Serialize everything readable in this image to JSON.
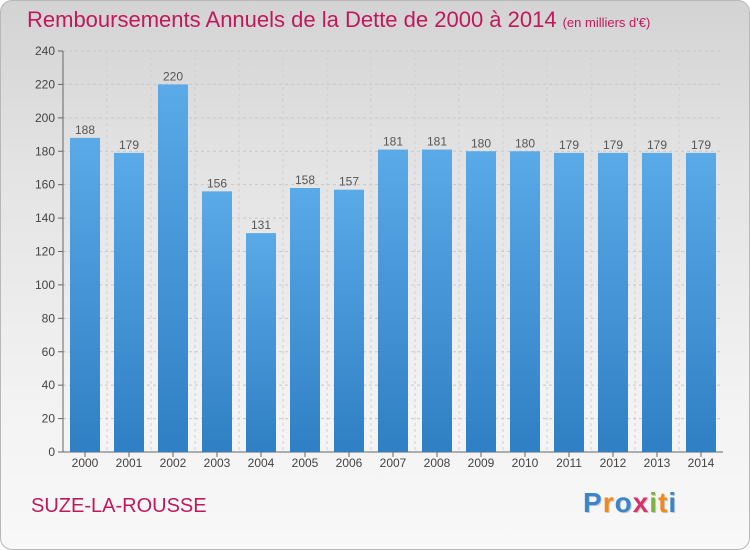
{
  "title": "Remboursements Annuels de la Dette de 2000 à 2014",
  "subtitle": "(en milliers d'€)",
  "commune": "SUZE-LA-ROUSSE",
  "logo": {
    "letters": [
      "P",
      "r",
      "o",
      "x",
      "i",
      "t",
      "i"
    ],
    "colors": [
      "#3a86c8",
      "#f08a1c",
      "#3a86c8",
      "#d6336c",
      "#7cb342",
      "#f08a1c",
      "#3a86c8"
    ]
  },
  "colors": {
    "bar": "#4f9fe0",
    "bar_dark": "#3483c8",
    "title": "#c2185b"
  },
  "chart_data": {
    "type": "bar",
    "categories": [
      "2000",
      "2001",
      "2002",
      "2003",
      "2004",
      "2005",
      "2006",
      "2007",
      "2008",
      "2009",
      "2010",
      "2011",
      "2012",
      "2013",
      "2014"
    ],
    "values": [
      188,
      179,
      220,
      156,
      131,
      158,
      157,
      181,
      181,
      180,
      180,
      179,
      179,
      179,
      179
    ],
    "title": "Remboursements Annuels de la Dette de 2000 à 2014",
    "subtitle": "(en milliers d'€)",
    "ylim": [
      0,
      240
    ],
    "yticks": [
      0,
      20,
      40,
      60,
      80,
      100,
      120,
      140,
      160,
      180,
      200,
      220,
      240
    ],
    "grid": true,
    "legend": "none"
  }
}
